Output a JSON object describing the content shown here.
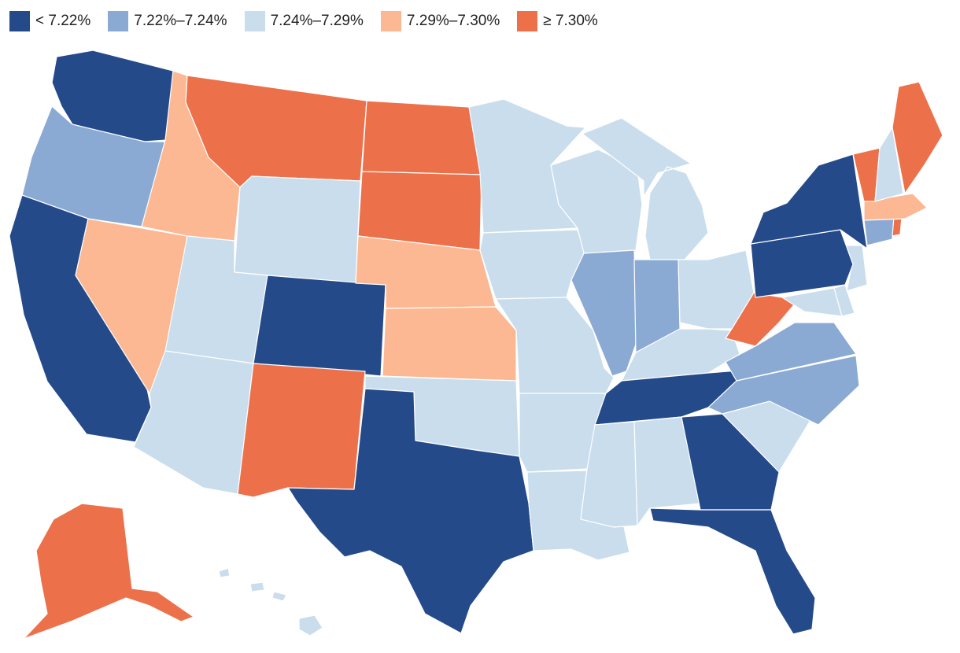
{
  "legend": [
    {
      "label": "< 7.22%",
      "color": "#244a8a"
    },
    {
      "label": "7.22%–7.24%",
      "color": "#8aaad4"
    },
    {
      "label": "7.24%–7.29%",
      "color": "#c9dded"
    },
    {
      "label": "7.29%–7.30%",
      "color": "#fbb892"
    },
    {
      "label": "≥ 7.30%",
      "color": "#ec714a"
    }
  ],
  "states": {
    "WA": 0,
    "OR": 1,
    "CA": 0,
    "NV": 3,
    "ID": 3,
    "MT": 4,
    "WY": 2,
    "UT": 2,
    "AZ": 2,
    "CO": 0,
    "NM": 4,
    "ND": 4,
    "SD": 4,
    "NE": 3,
    "KS": 3,
    "OK": 2,
    "TX": 0,
    "MN": 2,
    "IA": 2,
    "MO": 2,
    "AR": 2,
    "LA": 2,
    "WI": 2,
    "IL": 1,
    "MI": 2,
    "IN": 1,
    "OH": 2,
    "KY": 2,
    "TN": 0,
    "MS": 2,
    "AL": 2,
    "GA": 0,
    "FL": 0,
    "SC": 2,
    "NC": 1,
    "VA": 1,
    "WV": 4,
    "MD": 2,
    "DE": 2,
    "NJ": 2,
    "PA": 0,
    "NY": 0,
    "CT": 1,
    "RI": 4,
    "MA": 3,
    "VT": 4,
    "NH": 2,
    "ME": 4,
    "AK": 4,
    "HI": 2
  }
}
